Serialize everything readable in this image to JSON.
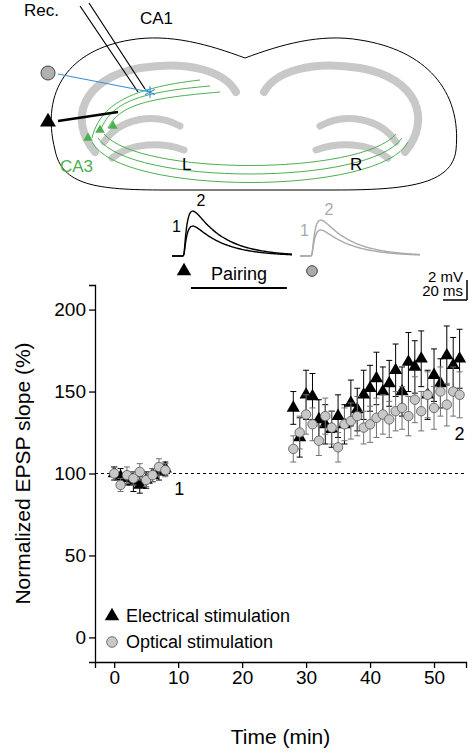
{
  "chart_data": {
    "type": "scatter",
    "y_label": "Normalized EPSP slope (%)",
    "x_label": "Time (min)",
    "xlim": [
      -3,
      55
    ],
    "xticks": [
      0,
      10,
      20,
      30,
      40,
      50
    ],
    "ylim": [
      -15,
      215
    ],
    "yticks": [
      0,
      50,
      100,
      150,
      200
    ],
    "legend": "lower left",
    "reference_line": {
      "value": 100,
      "line_style": "dashed"
    },
    "pairing": {
      "text": "Pairing",
      "start": 12,
      "end": 27
    },
    "annotations": [
      "1",
      "2"
    ],
    "series": [
      {
        "name": "Electrical stimulation",
        "color": "#000000",
        "marker": "triangle",
        "x": [
          0,
          1,
          2,
          3,
          4,
          5,
          6,
          7,
          8,
          28,
          29,
          30,
          31,
          32,
          33,
          34,
          35,
          36,
          37,
          38,
          39,
          40,
          41,
          42,
          43,
          44,
          45,
          46,
          47,
          48,
          49,
          50,
          51,
          52,
          53,
          54
        ],
        "values": [
          100,
          98,
          97,
          95,
          93,
          96,
          99,
          101,
          103,
          140,
          122,
          148,
          147,
          133,
          130,
          127,
          135,
          130,
          143,
          139,
          148,
          152,
          158,
          150,
          155,
          163,
          150,
          168,
          165,
          170,
          148,
          160,
          155,
          172,
          166,
          170
        ],
        "errors": [
          4,
          5,
          4,
          6,
          5,
          5,
          4,
          5,
          4,
          10,
          12,
          15,
          14,
          12,
          12,
          11,
          13,
          12,
          14,
          13,
          15,
          14,
          16,
          15,
          14,
          16,
          15,
          18,
          16,
          17,
          15,
          16,
          15,
          18,
          17,
          18
        ]
      },
      {
        "name": "Optical stimulation",
        "color": "#c8c8c8",
        "marker": "circle",
        "x": [
          0,
          1,
          2,
          3,
          4,
          5,
          6,
          7,
          8,
          28,
          29,
          30,
          31,
          32,
          33,
          34,
          35,
          36,
          37,
          38,
          39,
          40,
          41,
          42,
          43,
          44,
          45,
          46,
          47,
          48,
          49,
          50,
          51,
          52,
          53,
          54
        ],
        "values": [
          100,
          93,
          99,
          97,
          101,
          96,
          99,
          104,
          102,
          115,
          125,
          136,
          130,
          120,
          135,
          128,
          116,
          130,
          132,
          135,
          128,
          130,
          134,
          136,
          133,
          138,
          140,
          135,
          145,
          138,
          148,
          140,
          150,
          142,
          150,
          148
        ],
        "errors": [
          4,
          4,
          5,
          4,
          5,
          4,
          4,
          5,
          4,
          8,
          10,
          12,
          10,
          9,
          11,
          10,
          9,
          10,
          11,
          12,
          10,
          11,
          12,
          12,
          11,
          12,
          13,
          12,
          14,
          12,
          14,
          13,
          15,
          13,
          15,
          14
        ]
      }
    ]
  },
  "traces": {
    "items": [
      {
        "marker": "triangle",
        "color": "#000000",
        "labels": [
          "1",
          "2"
        ],
        "amplitudes": [
          3.0,
          4.5
        ]
      },
      {
        "marker": "circle",
        "color": "#aaaaaa",
        "labels": [
          "1",
          "2"
        ],
        "amplitudes": [
          2.6,
          3.6
        ]
      }
    ],
    "scale_bar": {
      "y_label": "2 mV",
      "y": 2,
      "x_label": "20 ms",
      "x": 20
    }
  },
  "diagram": {
    "labels": [
      "Rec.",
      "CA1",
      "CA3",
      "L",
      "R"
    ]
  }
}
